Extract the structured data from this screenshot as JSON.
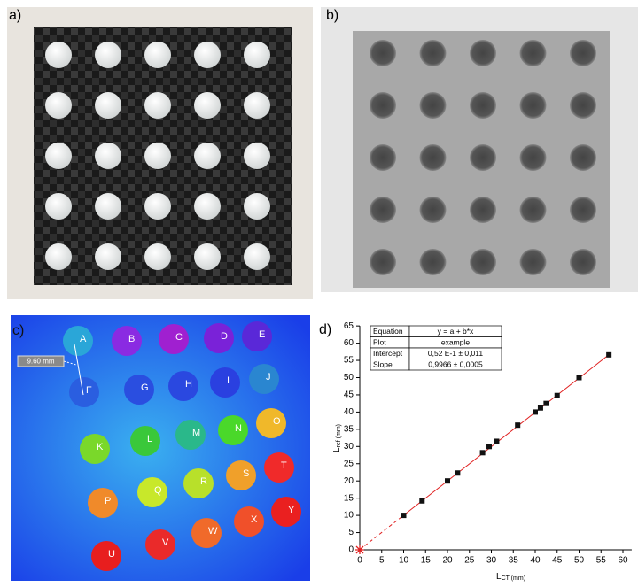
{
  "panels": {
    "a": "a)",
    "b": "b)",
    "c": "c)",
    "d": "d)"
  },
  "panel_c": {
    "measurement": "9.60 mm",
    "markers": [
      {
        "label": "A",
        "color": "#2aa6d8"
      },
      {
        "label": "B",
        "color": "#8a2be2"
      },
      {
        "label": "C",
        "color": "#a020d0"
      },
      {
        "label": "D",
        "color": "#7a22d8"
      },
      {
        "label": "E",
        "color": "#5a28d8"
      },
      {
        "label": "F",
        "color": "#2a5ee0"
      },
      {
        "label": "G",
        "color": "#2a4ee0"
      },
      {
        "label": "H",
        "color": "#2a48e0"
      },
      {
        "label": "I",
        "color": "#2a40e0"
      },
      {
        "label": "J",
        "color": "#2a86d0"
      },
      {
        "label": "K",
        "color": "#7ad82a"
      },
      {
        "label": "L",
        "color": "#3ac83a"
      },
      {
        "label": "M",
        "color": "#2ab88a"
      },
      {
        "label": "N",
        "color": "#4ad82a"
      },
      {
        "label": "O",
        "color": "#f0b82a"
      },
      {
        "label": "P",
        "color": "#f08a2a"
      },
      {
        "label": "Q",
        "color": "#c8e82a"
      },
      {
        "label": "R",
        "color": "#b8e02a"
      },
      {
        "label": "S",
        "color": "#f0a02a"
      },
      {
        "label": "T",
        "color": "#f02a2a"
      },
      {
        "label": "U",
        "color": "#e81e1e"
      },
      {
        "label": "V",
        "color": "#ea2a2a"
      },
      {
        "label": "W",
        "color": "#f06a2a"
      },
      {
        "label": "X",
        "color": "#f0502a"
      },
      {
        "label": "Y",
        "color": "#ea2020"
      }
    ]
  },
  "chart_data": {
    "type": "scatter",
    "xlabel": [
      "L",
      "CT (mm)"
    ],
    "ylabel": [
      "L",
      "ref (mm)"
    ],
    "xlim": [
      0,
      62
    ],
    "ylim": [
      0,
      65
    ],
    "xticks": [
      0,
      5,
      10,
      15,
      20,
      25,
      30,
      35,
      40,
      45,
      50,
      55,
      60
    ],
    "yticks": [
      0,
      5,
      10,
      15,
      20,
      25,
      30,
      35,
      40,
      45,
      50,
      55,
      60,
      65
    ],
    "series": [
      {
        "marker": "square",
        "color": "#111111",
        "x": [
          10,
          14.2,
          20,
          22.3,
          28,
          29.5,
          31.2,
          36,
          40,
          41.2,
          42.5,
          45,
          50,
          56.8
        ],
        "values": [
          10,
          14.2,
          20,
          22.3,
          28.2,
          30,
          31.5,
          36.2,
          40,
          41.2,
          42.5,
          44.8,
          50,
          56.6
        ]
      },
      {
        "marker": "star",
        "color": "#e02020",
        "x": [
          0
        ],
        "values": [
          0
        ]
      }
    ],
    "fit": {
      "color": "#e02020",
      "intercept": 0.052,
      "slope": 0.9966
    },
    "table": [
      [
        "Equation",
        "y = a + b*x"
      ],
      [
        "Plot",
        "example"
      ],
      [
        "Intercept",
        "0,52 E-1 ± 0,011"
      ],
      [
        "Slope",
        "0,9966 ± 0,0005"
      ]
    ]
  }
}
